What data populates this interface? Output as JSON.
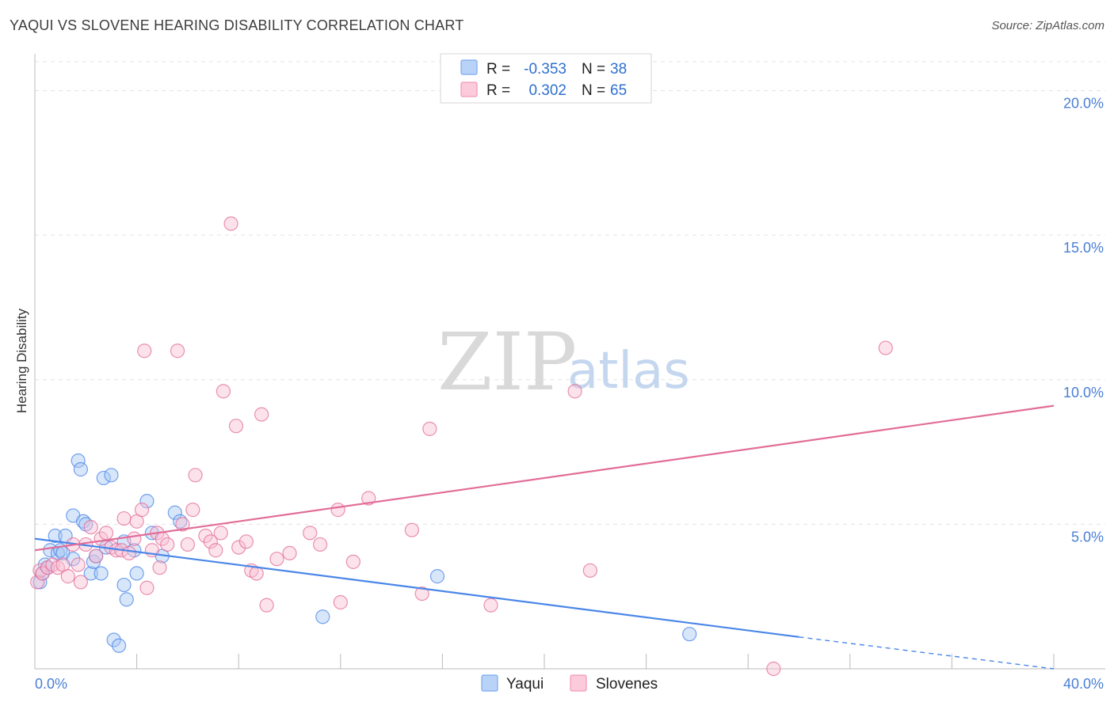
{
  "title": "YAQUI VS SLOVENE HEARING DISABILITY CORRELATION CHART",
  "source": "Source: ZipAtlas.com",
  "watermark": {
    "zip": "ZIP",
    "atlas": "atlas"
  },
  "legend": {
    "r_label": "R =",
    "n_label": "N =",
    "entries": [
      {
        "r": "-0.353",
        "n": "38",
        "color": "#7aaaf0",
        "fill": "#b9d2f7"
      },
      {
        "r": "0.302",
        "n": "65",
        "color": "#f09ab8",
        "fill": "#fbcadb"
      }
    ]
  },
  "chart_data": {
    "type": "scatter",
    "title": "YAQUI VS SLOVENE HEARING DISABILITY CORRELATION CHART",
    "xlabel": "",
    "ylabel": "Hearing Disability",
    "xlim": [
      0,
      40
    ],
    "ylim": [
      0,
      21
    ],
    "x_ticks": [
      "0.0%",
      "40.0%"
    ],
    "y_ticks": [
      {
        "value": 5,
        "label": "5.0%"
      },
      {
        "value": 10,
        "label": "10.0%"
      },
      {
        "value": 15,
        "label": "15.0%"
      },
      {
        "value": 20,
        "label": "20.0%"
      }
    ],
    "grid": true,
    "legend_position": "top-center",
    "series": [
      {
        "name": "Yaqui",
        "color": "#4a86e8",
        "fill": "#a9c7f3",
        "trend": {
          "x0": 0,
          "y0": 4.5,
          "x1": 30,
          "y1": 1.1,
          "dash_to_x": 40,
          "dash_to_y": 0.0
        },
        "points": [
          [
            0.2,
            3.0
          ],
          [
            0.3,
            3.3
          ],
          [
            0.4,
            3.6
          ],
          [
            0.5,
            3.5
          ],
          [
            0.6,
            4.1
          ],
          [
            0.8,
            4.6
          ],
          [
            0.9,
            4.0
          ],
          [
            1.0,
            4.1
          ],
          [
            1.1,
            4.0
          ],
          [
            1.2,
            4.6
          ],
          [
            1.5,
            3.8
          ],
          [
            1.5,
            5.3
          ],
          [
            1.7,
            7.2
          ],
          [
            1.8,
            6.9
          ],
          [
            1.9,
            5.1
          ],
          [
            2.0,
            5.0
          ],
          [
            2.2,
            3.3
          ],
          [
            2.3,
            3.7
          ],
          [
            2.4,
            3.9
          ],
          [
            2.6,
            3.3
          ],
          [
            2.7,
            6.6
          ],
          [
            2.8,
            4.2
          ],
          [
            3.0,
            6.7
          ],
          [
            3.1,
            1.0
          ],
          [
            3.3,
            0.8
          ],
          [
            3.5,
            4.4
          ],
          [
            3.5,
            2.9
          ],
          [
            3.6,
            2.4
          ],
          [
            3.9,
            4.1
          ],
          [
            4.0,
            3.3
          ],
          [
            4.4,
            5.8
          ],
          [
            4.6,
            4.7
          ],
          [
            5.0,
            3.9
          ],
          [
            5.5,
            5.4
          ],
          [
            5.7,
            5.1
          ],
          [
            11.3,
            1.8
          ],
          [
            15.8,
            3.2
          ],
          [
            25.7,
            1.2
          ]
        ]
      },
      {
        "name": "Slovenes",
        "color": "#e26d98",
        "fill": "#f8bfd3",
        "trend": {
          "x0": 0,
          "y0": 4.1,
          "x1": 40,
          "y1": 9.1
        },
        "points": [
          [
            0.1,
            3.0
          ],
          [
            0.2,
            3.4
          ],
          [
            0.3,
            3.3
          ],
          [
            0.5,
            3.5
          ],
          [
            0.7,
            3.6
          ],
          [
            0.9,
            3.5
          ],
          [
            1.1,
            3.6
          ],
          [
            1.3,
            3.2
          ],
          [
            1.5,
            4.3
          ],
          [
            1.7,
            3.6
          ],
          [
            1.8,
            3.0
          ],
          [
            2.0,
            4.3
          ],
          [
            2.2,
            4.9
          ],
          [
            2.4,
            3.9
          ],
          [
            2.6,
            4.5
          ],
          [
            2.8,
            4.7
          ],
          [
            3.0,
            4.2
          ],
          [
            3.2,
            4.1
          ],
          [
            3.4,
            4.1
          ],
          [
            3.5,
            5.2
          ],
          [
            3.7,
            4.0
          ],
          [
            3.9,
            4.5
          ],
          [
            4.0,
            5.1
          ],
          [
            4.2,
            5.5
          ],
          [
            4.3,
            11.0
          ],
          [
            4.4,
            2.8
          ],
          [
            4.6,
            4.1
          ],
          [
            4.8,
            4.7
          ],
          [
            4.9,
            3.5
          ],
          [
            5.0,
            4.5
          ],
          [
            5.2,
            4.3
          ],
          [
            5.6,
            11.0
          ],
          [
            5.8,
            5.0
          ],
          [
            6.0,
            4.3
          ],
          [
            6.2,
            5.5
          ],
          [
            6.3,
            6.7
          ],
          [
            6.7,
            4.6
          ],
          [
            6.9,
            4.4
          ],
          [
            7.1,
            4.1
          ],
          [
            7.3,
            4.7
          ],
          [
            7.4,
            9.6
          ],
          [
            7.7,
            15.4
          ],
          [
            7.9,
            8.4
          ],
          [
            8.0,
            4.2
          ],
          [
            8.3,
            4.4
          ],
          [
            8.5,
            3.4
          ],
          [
            8.7,
            3.3
          ],
          [
            8.9,
            8.8
          ],
          [
            9.1,
            2.2
          ],
          [
            9.5,
            3.8
          ],
          [
            10.0,
            4.0
          ],
          [
            10.8,
            4.7
          ],
          [
            11.2,
            4.3
          ],
          [
            11.9,
            5.5
          ],
          [
            12.0,
            2.3
          ],
          [
            12.5,
            3.7
          ],
          [
            13.1,
            5.9
          ],
          [
            14.8,
            4.8
          ],
          [
            15.2,
            2.6
          ],
          [
            15.5,
            8.3
          ],
          [
            17.9,
            2.2
          ],
          [
            21.2,
            9.6
          ],
          [
            21.8,
            3.4
          ],
          [
            33.4,
            11.1
          ],
          [
            29.0,
            0.0
          ]
        ]
      }
    ]
  },
  "bottom_legend": [
    {
      "name": "Yaqui"
    },
    {
      "name": "Slovenes"
    }
  ]
}
